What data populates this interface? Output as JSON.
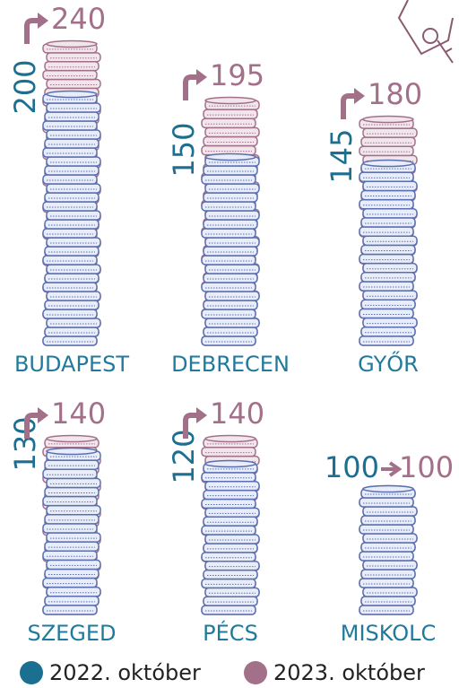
{
  "chart_data": {
    "type": "coin-stack",
    "categories": [
      "BUDAPEST",
      "DEBRECEN",
      "GYŐR",
      "SZEGED",
      "PÉCS",
      "MISKOLC"
    ],
    "series": [
      {
        "name": "2022. október",
        "color": "#1b6f91",
        "values": [
          200,
          150,
          145,
          130,
          120,
          100
        ]
      },
      {
        "name": "2023. október",
        "color": "#a3708a",
        "values": [
          240,
          195,
          180,
          140,
          140,
          100
        ]
      }
    ]
  }
}
